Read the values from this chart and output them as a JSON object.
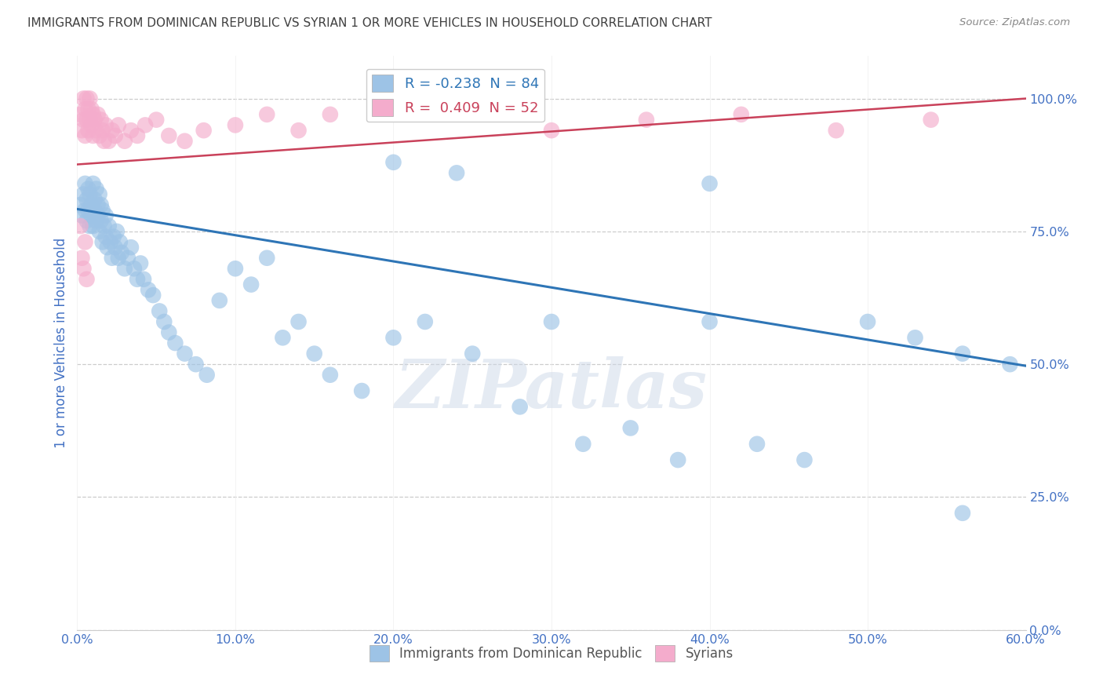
{
  "title": "IMMIGRANTS FROM DOMINICAN REPUBLIC VS SYRIAN 1 OR MORE VEHICLES IN HOUSEHOLD CORRELATION CHART",
  "source": "Source: ZipAtlas.com",
  "ylabel": "1 or more Vehicles in Household",
  "xlim": [
    0.0,
    0.6
  ],
  "ylim": [
    0.0,
    1.08
  ],
  "xtick_vals": [
    0.0,
    0.1,
    0.2,
    0.3,
    0.4,
    0.5,
    0.6
  ],
  "xtick_labels": [
    "0.0%",
    "10.0%",
    "20.0%",
    "30.0%",
    "40.0%",
    "50.0%",
    "60.0%"
  ],
  "ytick_vals": [
    0.0,
    0.25,
    0.5,
    0.75,
    1.0
  ],
  "ytick_labels": [
    "0.0%",
    "25.0%",
    "50.0%",
    "75.0%",
    "100.0%"
  ],
  "watermark": "ZIPatlas",
  "blue_line": {
    "x0": 0.0,
    "y0": 0.792,
    "x1": 0.6,
    "y1": 0.497
  },
  "pink_line": {
    "x0": 0.0,
    "y0": 0.876,
    "x1": 0.6,
    "y1": 1.0
  },
  "blue_scatter_x": [
    0.002,
    0.003,
    0.004,
    0.005,
    0.005,
    0.006,
    0.006,
    0.007,
    0.007,
    0.008,
    0.008,
    0.009,
    0.009,
    0.01,
    0.01,
    0.011,
    0.011,
    0.012,
    0.012,
    0.013,
    0.013,
    0.014,
    0.014,
    0.015,
    0.015,
    0.016,
    0.016,
    0.017,
    0.018,
    0.018,
    0.019,
    0.02,
    0.021,
    0.022,
    0.023,
    0.024,
    0.025,
    0.026,
    0.027,
    0.028,
    0.03,
    0.032,
    0.034,
    0.036,
    0.038,
    0.04,
    0.042,
    0.045,
    0.048,
    0.052,
    0.055,
    0.058,
    0.062,
    0.068,
    0.075,
    0.082,
    0.09,
    0.1,
    0.11,
    0.12,
    0.13,
    0.14,
    0.15,
    0.16,
    0.18,
    0.2,
    0.22,
    0.25,
    0.28,
    0.3,
    0.32,
    0.35,
    0.38,
    0.4,
    0.43,
    0.46,
    0.5,
    0.53,
    0.56,
    0.59,
    0.2,
    0.24,
    0.4,
    0.56
  ],
  "blue_scatter_y": [
    0.8,
    0.78,
    0.82,
    0.79,
    0.84,
    0.81,
    0.77,
    0.83,
    0.79,
    0.76,
    0.82,
    0.8,
    0.78,
    0.84,
    0.76,
    0.81,
    0.79,
    0.77,
    0.83,
    0.8,
    0.78,
    0.75,
    0.82,
    0.77,
    0.8,
    0.73,
    0.79,
    0.76,
    0.74,
    0.78,
    0.72,
    0.76,
    0.73,
    0.7,
    0.74,
    0.72,
    0.75,
    0.7,
    0.73,
    0.71,
    0.68,
    0.7,
    0.72,
    0.68,
    0.66,
    0.69,
    0.66,
    0.64,
    0.63,
    0.6,
    0.58,
    0.56,
    0.54,
    0.52,
    0.5,
    0.48,
    0.62,
    0.68,
    0.65,
    0.7,
    0.55,
    0.58,
    0.52,
    0.48,
    0.45,
    0.55,
    0.58,
    0.52,
    0.42,
    0.58,
    0.35,
    0.38,
    0.32,
    0.58,
    0.35,
    0.32,
    0.58,
    0.55,
    0.52,
    0.5,
    0.88,
    0.86,
    0.84,
    0.22
  ],
  "pink_scatter_x": [
    0.002,
    0.003,
    0.004,
    0.004,
    0.005,
    0.005,
    0.006,
    0.006,
    0.007,
    0.007,
    0.008,
    0.008,
    0.009,
    0.009,
    0.01,
    0.01,
    0.011,
    0.012,
    0.013,
    0.014,
    0.015,
    0.016,
    0.017,
    0.018,
    0.02,
    0.022,
    0.024,
    0.026,
    0.03,
    0.034,
    0.038,
    0.043,
    0.05,
    0.058,
    0.068,
    0.08,
    0.1,
    0.12,
    0.14,
    0.16,
    0.2,
    0.25,
    0.3,
    0.36,
    0.42,
    0.48,
    0.54,
    0.002,
    0.003,
    0.004,
    0.005,
    0.006
  ],
  "pink_scatter_y": [
    0.97,
    0.94,
    0.96,
    1.0,
    0.98,
    0.93,
    0.96,
    1.0,
    0.94,
    0.98,
    0.96,
    1.0,
    0.95,
    0.98,
    0.93,
    0.97,
    0.96,
    0.94,
    0.97,
    0.93,
    0.96,
    0.94,
    0.92,
    0.95,
    0.92,
    0.94,
    0.93,
    0.95,
    0.92,
    0.94,
    0.93,
    0.95,
    0.96,
    0.93,
    0.92,
    0.94,
    0.95,
    0.97,
    0.94,
    0.97,
    1.0,
    1.0,
    0.94,
    0.96,
    0.97,
    0.94,
    0.96,
    0.76,
    0.7,
    0.68,
    0.73,
    0.66
  ],
  "blue_color": "#9dc3e6",
  "pink_color": "#f4accc",
  "blue_line_color": "#2e75b6",
  "pink_line_color": "#c9415a",
  "grid_color": "#cccccc",
  "bg_color": "#ffffff",
  "title_color": "#404040",
  "axis_label_color": "#4472c4",
  "tick_color": "#4472c4"
}
